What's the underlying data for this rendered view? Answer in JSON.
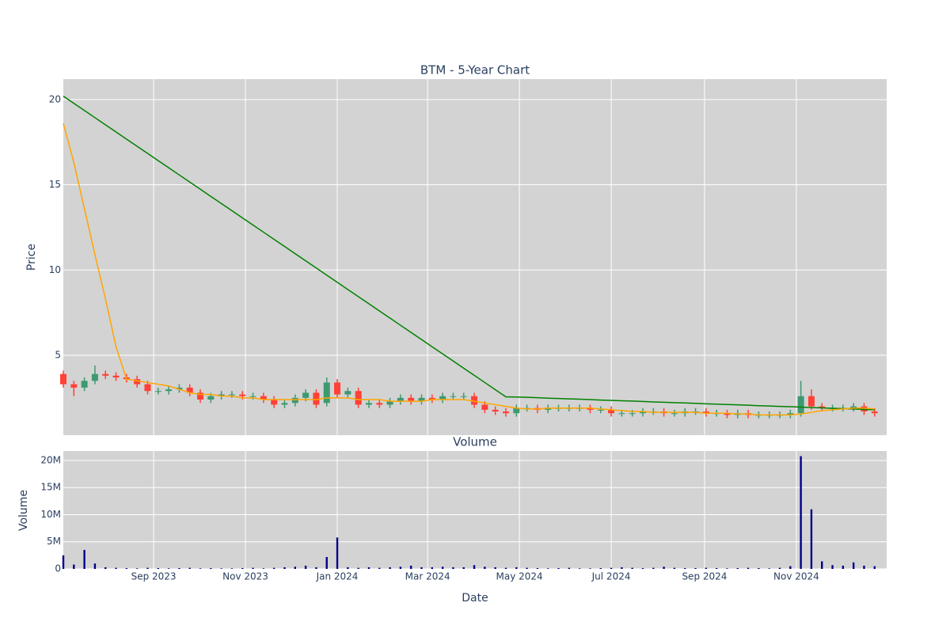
{
  "chart_data": [
    {
      "type": "candlestick",
      "title": "BTM - 5-Year Chart",
      "ylabel": "Price",
      "x": [
        "2023-07-03",
        "2023-07-10",
        "2023-07-17",
        "2023-07-24",
        "2023-07-31",
        "2023-08-07",
        "2023-08-14",
        "2023-08-21",
        "2023-08-28",
        "2023-09-04",
        "2023-09-11",
        "2023-09-18",
        "2023-09-25",
        "2023-10-02",
        "2023-10-09",
        "2023-10-16",
        "2023-10-23",
        "2023-10-30",
        "2023-11-06",
        "2023-11-13",
        "2023-11-20",
        "2023-11-27",
        "2023-12-04",
        "2023-12-11",
        "2023-12-18",
        "2023-12-25",
        "2024-01-01",
        "2024-01-08",
        "2024-01-15",
        "2024-01-22",
        "2024-01-29",
        "2024-02-05",
        "2024-02-12",
        "2024-02-19",
        "2024-02-26",
        "2024-03-04",
        "2024-03-11",
        "2024-03-18",
        "2024-03-25",
        "2024-04-01",
        "2024-04-08",
        "2024-04-15",
        "2024-04-22",
        "2024-04-29",
        "2024-05-06",
        "2024-05-13",
        "2024-05-20",
        "2024-05-27",
        "2024-06-03",
        "2024-06-10",
        "2024-06-17",
        "2024-06-24",
        "2024-07-01",
        "2024-07-08",
        "2024-07-15",
        "2024-07-22",
        "2024-07-29",
        "2024-08-05",
        "2024-08-12",
        "2024-08-19",
        "2024-08-26",
        "2024-09-02",
        "2024-09-09",
        "2024-09-16",
        "2024-09-23",
        "2024-09-30",
        "2024-10-07",
        "2024-10-14",
        "2024-10-21",
        "2024-10-28",
        "2024-11-04",
        "2024-11-11",
        "2024-11-18",
        "2024-11-25",
        "2024-12-02",
        "2024-12-09",
        "2024-12-16",
        "2024-12-23"
      ],
      "open": [
        3.9,
        3.3,
        3.1,
        3.5,
        3.9,
        3.8,
        3.7,
        3.6,
        3.3,
        2.9,
        2.9,
        3.0,
        3.1,
        2.8,
        2.4,
        2.6,
        2.7,
        2.7,
        2.6,
        2.6,
        2.4,
        2.1,
        2.2,
        2.5,
        2.8,
        2.2,
        3.4,
        2.7,
        2.9,
        2.1,
        2.2,
        2.1,
        2.3,
        2.5,
        2.3,
        2.5,
        2.4,
        2.6,
        2.6,
        2.6,
        2.1,
        1.8,
        1.7,
        1.6,
        1.9,
        1.9,
        1.8,
        1.9,
        1.9,
        1.9,
        1.9,
        1.8,
        1.8,
        1.6,
        1.6,
        1.6,
        1.7,
        1.7,
        1.6,
        1.6,
        1.7,
        1.7,
        1.6,
        1.6,
        1.5,
        1.6,
        1.5,
        1.5,
        1.5,
        1.5,
        1.6,
        2.6,
        2.0,
        1.9,
        1.9,
        1.9,
        2.0,
        1.7
      ],
      "high": [
        4.1,
        3.5,
        3.7,
        4.4,
        4.1,
        4.0,
        3.9,
        3.8,
        3.5,
        3.1,
        3.2,
        3.3,
        3.3,
        3.0,
        2.8,
        2.9,
        2.9,
        2.9,
        2.8,
        2.8,
        2.6,
        2.4,
        2.7,
        3.0,
        3.0,
        3.7,
        3.6,
        3.1,
        3.1,
        2.4,
        2.4,
        2.5,
        2.7,
        2.7,
        2.7,
        2.7,
        2.8,
        2.8,
        2.8,
        2.8,
        2.3,
        2.0,
        1.9,
        2.1,
        2.1,
        2.1,
        2.1,
        2.1,
        2.1,
        2.1,
        2.1,
        2.0,
        2.0,
        1.8,
        1.8,
        1.9,
        1.9,
        1.9,
        1.8,
        1.9,
        1.9,
        1.9,
        1.8,
        1.8,
        1.8,
        1.8,
        1.7,
        1.7,
        1.7,
        1.8,
        3.5,
        3.0,
        2.2,
        2.1,
        2.1,
        2.2,
        2.2,
        1.9
      ],
      "low": [
        3.1,
        2.6,
        2.9,
        3.3,
        3.6,
        3.5,
        3.4,
        3.1,
        2.7,
        2.7,
        2.7,
        2.8,
        2.6,
        2.2,
        2.2,
        2.4,
        2.5,
        2.4,
        2.4,
        2.2,
        1.9,
        1.9,
        2.0,
        2.3,
        1.9,
        2.0,
        2.5,
        2.5,
        1.9,
        1.9,
        1.9,
        1.9,
        2.1,
        2.1,
        2.1,
        2.2,
        2.2,
        2.4,
        2.4,
        1.9,
        1.6,
        1.5,
        1.4,
        1.4,
        1.7,
        1.6,
        1.6,
        1.7,
        1.7,
        1.7,
        1.6,
        1.6,
        1.4,
        1.4,
        1.4,
        1.4,
        1.5,
        1.4,
        1.4,
        1.4,
        1.5,
        1.4,
        1.4,
        1.3,
        1.3,
        1.3,
        1.3,
        1.3,
        1.3,
        1.3,
        1.4,
        1.8,
        1.7,
        1.7,
        1.7,
        1.7,
        1.5,
        1.4
      ],
      "close": [
        3.3,
        3.1,
        3.5,
        3.9,
        3.8,
        3.7,
        3.6,
        3.3,
        2.9,
        2.9,
        3.0,
        3.1,
        2.8,
        2.4,
        2.6,
        2.7,
        2.7,
        2.6,
        2.6,
        2.4,
        2.1,
        2.2,
        2.5,
        2.8,
        2.1,
        3.4,
        2.7,
        2.9,
        2.1,
        2.2,
        2.1,
        2.3,
        2.5,
        2.3,
        2.5,
        2.4,
        2.6,
        2.6,
        2.6,
        2.1,
        1.8,
        1.7,
        1.6,
        1.9,
        1.9,
        1.8,
        1.9,
        1.9,
        1.9,
        1.9,
        1.8,
        1.8,
        1.6,
        1.6,
        1.6,
        1.7,
        1.7,
        1.6,
        1.6,
        1.7,
        1.7,
        1.6,
        1.6,
        1.5,
        1.6,
        1.5,
        1.5,
        1.5,
        1.5,
        1.6,
        2.6,
        2.0,
        1.9,
        1.9,
        1.9,
        2.0,
        1.7,
        1.6
      ],
      "increasing_color": "#3d9970",
      "decreasing_color": "#ff4136",
      "lines": [
        {
          "color": "#008000",
          "values": [
            20.2,
            19.78,
            19.36,
            18.94,
            18.52,
            18.1,
            17.68,
            17.26,
            16.84,
            16.42,
            16.0,
            15.58,
            15.16,
            14.74,
            14.32,
            13.9,
            13.48,
            13.06,
            12.64,
            12.22,
            11.8,
            11.38,
            10.96,
            10.54,
            10.12,
            9.7,
            9.28,
            8.86,
            8.44,
            8.02,
            7.6,
            7.18,
            6.76,
            6.34,
            5.92,
            5.5,
            5.08,
            4.66,
            4.24,
            3.82,
            3.4,
            2.98,
            2.56,
            2.55,
            2.53,
            2.51,
            2.48,
            2.46,
            2.44,
            2.42,
            2.4,
            2.37,
            2.35,
            2.33,
            2.31,
            2.29,
            2.26,
            2.24,
            2.22,
            2.2,
            2.18,
            2.15,
            2.13,
            2.11,
            2.09,
            2.07,
            2.04,
            2.02,
            2.0,
            1.98,
            1.96,
            1.93,
            1.91,
            1.89,
            1.87,
            1.85,
            1.82,
            1.8
          ]
        },
        {
          "color": "#ffa500",
          "values": [
            18.6,
            16.3,
            13.6,
            10.9,
            8.3,
            5.5,
            3.6,
            3.5,
            3.4,
            3.3,
            3.2,
            3.0,
            2.8,
            2.7,
            2.7,
            2.6,
            2.6,
            2.5,
            2.5,
            2.4,
            2.4,
            2.4,
            2.4,
            2.4,
            2.4,
            2.5,
            2.5,
            2.5,
            2.4,
            2.4,
            2.4,
            2.3,
            2.3,
            2.3,
            2.3,
            2.4,
            2.4,
            2.4,
            2.4,
            2.3,
            2.2,
            2.1,
            2.0,
            1.9,
            1.85,
            1.85,
            1.9,
            1.9,
            1.9,
            1.9,
            1.9,
            1.85,
            1.8,
            1.75,
            1.7,
            1.7,
            1.65,
            1.65,
            1.65,
            1.65,
            1.65,
            1.6,
            1.6,
            1.6,
            1.55,
            1.55,
            1.5,
            1.5,
            1.5,
            1.5,
            1.55,
            1.65,
            1.75,
            1.8,
            1.85,
            1.9,
            1.9,
            1.85
          ]
        }
      ],
      "xlim": [
        "2023-07-03",
        "2024-12-31"
      ],
      "ylim": [
        0.31,
        21.2
      ],
      "yticks": [
        5,
        10,
        15,
        20
      ],
      "grid": true
    },
    {
      "type": "bar",
      "title": "Volume",
      "xlabel": "Date",
      "ylabel": "Volume",
      "x": [
        "2023-07-03",
        "2023-07-10",
        "2023-07-17",
        "2023-07-24",
        "2023-07-31",
        "2023-08-07",
        "2023-08-14",
        "2023-08-21",
        "2023-08-28",
        "2023-09-04",
        "2023-09-11",
        "2023-09-18",
        "2023-09-25",
        "2023-10-02",
        "2023-10-09",
        "2023-10-16",
        "2023-10-23",
        "2023-10-30",
        "2023-11-06",
        "2023-11-13",
        "2023-11-20",
        "2023-11-27",
        "2023-12-04",
        "2023-12-11",
        "2023-12-18",
        "2023-12-25",
        "2024-01-01",
        "2024-01-08",
        "2024-01-15",
        "2024-01-22",
        "2024-01-29",
        "2024-02-05",
        "2024-02-12",
        "2024-02-19",
        "2024-02-26",
        "2024-03-04",
        "2024-03-11",
        "2024-03-18",
        "2024-03-25",
        "2024-04-01",
        "2024-04-08",
        "2024-04-15",
        "2024-04-22",
        "2024-04-29",
        "2024-05-06",
        "2024-05-13",
        "2024-05-20",
        "2024-05-27",
        "2024-06-03",
        "2024-06-10",
        "2024-06-17",
        "2024-06-24",
        "2024-07-01",
        "2024-07-08",
        "2024-07-15",
        "2024-07-22",
        "2024-07-29",
        "2024-08-05",
        "2024-08-12",
        "2024-08-19",
        "2024-08-26",
        "2024-09-02",
        "2024-09-09",
        "2024-09-16",
        "2024-09-23",
        "2024-09-30",
        "2024-10-07",
        "2024-10-14",
        "2024-10-21",
        "2024-10-28",
        "2024-11-04",
        "2024-11-11",
        "2024-11-18",
        "2024-11-25",
        "2024-12-02",
        "2024-12-09",
        "2024-12-16",
        "2024-12-23"
      ],
      "values": [
        2500000,
        800000,
        3500000,
        1000000,
        300000,
        200000,
        150000,
        100000,
        200000,
        150000,
        100000,
        150000,
        200000,
        100000,
        150000,
        100000,
        100000,
        150000,
        200000,
        100000,
        200000,
        300000,
        400000,
        600000,
        300000,
        2200000,
        5800000,
        300000,
        200000,
        300000,
        200000,
        300000,
        400000,
        600000,
        300000,
        300000,
        400000,
        300000,
        300000,
        700000,
        400000,
        300000,
        200000,
        300000,
        200000,
        150000,
        100000,
        150000,
        200000,
        100000,
        100000,
        150000,
        200000,
        300000,
        200000,
        150000,
        200000,
        400000,
        200000,
        150000,
        150000,
        200000,
        150000,
        100000,
        150000,
        200000,
        150000,
        100000,
        200000,
        500000,
        20800000,
        11000000,
        1400000,
        700000,
        600000,
        1200000,
        600000,
        500000
      ],
      "color": "#00008b",
      "xlim": [
        "2023-07-03",
        "2024-12-31"
      ],
      "xticks": [
        {
          "value": "2023-09-01",
          "label": "Sep 2023"
        },
        {
          "value": "2023-11-01",
          "label": "Nov 2023"
        },
        {
          "value": "2024-01-01",
          "label": "Jan 2024"
        },
        {
          "value": "2024-03-01",
          "label": "Mar 2024"
        },
        {
          "value": "2024-05-01",
          "label": "May 2024"
        },
        {
          "value": "2024-07-01",
          "label": "Jul 2024"
        },
        {
          "value": "2024-09-01",
          "label": "Sep 2024"
        },
        {
          "value": "2024-11-01",
          "label": "Nov 2024"
        }
      ],
      "ylim": [
        0,
        21750000
      ],
      "yticks": [
        0,
        {
          "value": 5000000,
          "label": "5M"
        },
        {
          "value": 10000000,
          "label": "10M"
        },
        {
          "value": 15000000,
          "label": "15M"
        },
        {
          "value": 20000000,
          "label": "20M"
        }
      ],
      "grid": true
    }
  ]
}
